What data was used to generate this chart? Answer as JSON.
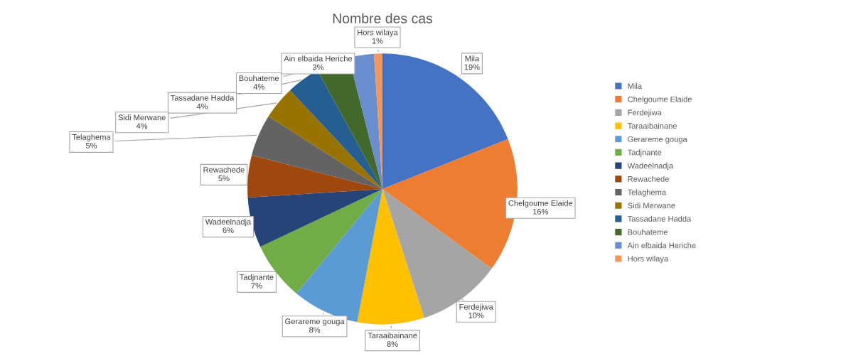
{
  "chart_data": {
    "type": "pie",
    "title": "Nombre des cas",
    "categories": [
      "Mila",
      "Chelgoume Elaide",
      "Ferdejiwa",
      "Taraaibainane",
      "Gerareme gouga",
      "Tadjnante",
      "Wadeelnadja",
      "Rewachede",
      "Telaghema",
      "Sidi Merwane",
      "Tassadane Hadda",
      "Bouhateme",
      "Ain elbaida Heriche",
      "Hors wilaya"
    ],
    "values": [
      19,
      16,
      10,
      8,
      8,
      7,
      6,
      5,
      5,
      4,
      4,
      4,
      3,
      1
    ],
    "value_labels": [
      "19%",
      "16%",
      "10%",
      "8%",
      "8%",
      "7%",
      "6%",
      "5%",
      "5%",
      "4%",
      "4%",
      "4%",
      "3%",
      "1%"
    ],
    "colors": [
      "#4472c4",
      "#ed7d31",
      "#a5a5a5",
      "#ffc000",
      "#5b9bd5",
      "#70ad47",
      "#264478",
      "#9e480e",
      "#636363",
      "#997300",
      "#255e91",
      "#43682b",
      "#698ed0",
      "#f1975a"
    ],
    "legend": "right"
  }
}
